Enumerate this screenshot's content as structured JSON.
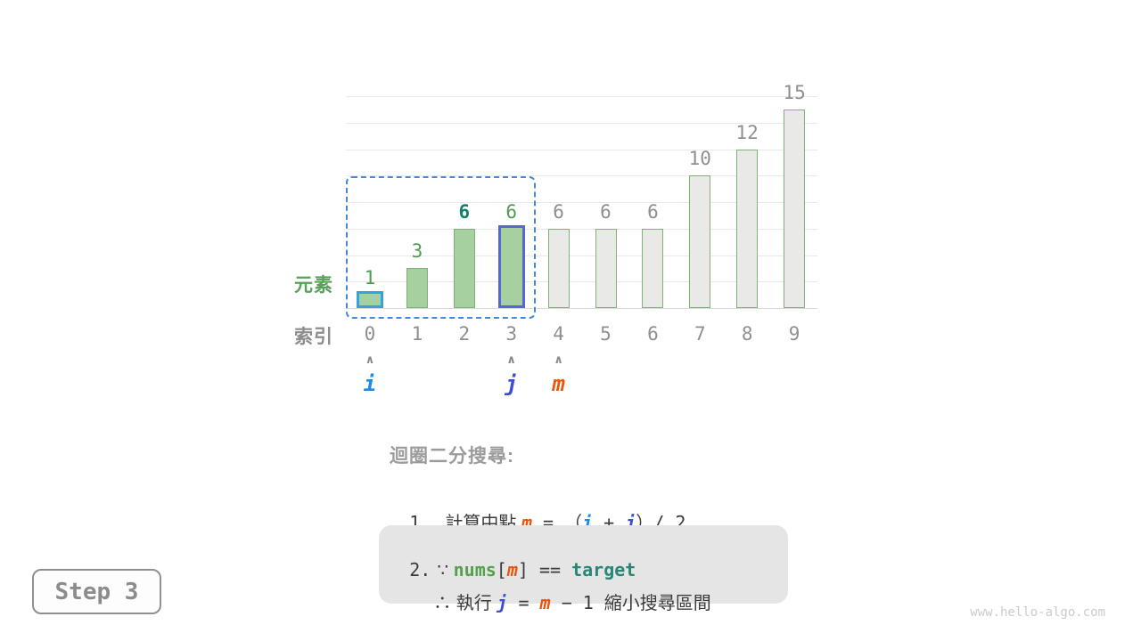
{
  "step_badge": "Step 3",
  "watermark": "www.hello-algo.com",
  "chart_data": {
    "type": "bar",
    "title": "",
    "xlabel": "索引",
    "ylabel": "元素",
    "categories": [
      "0",
      "1",
      "2",
      "3",
      "4",
      "5",
      "6",
      "7",
      "8",
      "9"
    ],
    "values": [
      1,
      3,
      6,
      6,
      6,
      6,
      6,
      10,
      12,
      15
    ],
    "ylim": [
      0,
      16
    ],
    "gridline_values": [
      2,
      4,
      6,
      8,
      10,
      12,
      14,
      16
    ],
    "grid": true,
    "legend": "none",
    "row_label_elements": "元素",
    "row_label_index": "索引",
    "bar_states": [
      "active",
      "active",
      "active",
      "active",
      "inactive",
      "inactive",
      "inactive",
      "inactive",
      "inactive",
      "inactive"
    ],
    "bar_highlights": {
      "0": "blue",
      "3": "indigo"
    },
    "value_label_styles": [
      "green",
      "green",
      "teal-bold",
      "green",
      "gray",
      "gray",
      "gray",
      "gray",
      "gray",
      "gray"
    ],
    "search_window": {
      "from_index": 0,
      "to_index": 3
    }
  },
  "pointers": [
    {
      "label": "i",
      "index": 0,
      "style": "i"
    },
    {
      "label": "j",
      "index": 3,
      "style": "j"
    },
    {
      "label": "m",
      "index": 4,
      "style": "m"
    }
  ],
  "explanation": {
    "heading": "迴圈二分搜尋:",
    "line1": {
      "number": "1.",
      "segments": [
        {
          "t": "計算中點 ",
          "c": "text"
        },
        {
          "t": "m",
          "c": "m"
        },
        {
          "t": " = ",
          "c": "mono"
        },
        {
          "t": "（",
          "c": "text"
        },
        {
          "t": "i",
          "c": "i"
        },
        {
          "t": " + ",
          "c": "mono"
        },
        {
          "t": "j",
          "c": "j"
        },
        {
          "t": "）",
          "c": "text"
        },
        {
          "t": "/ 2",
          "c": "mono"
        }
      ]
    },
    "line2a": {
      "number": "2.",
      "segments": [
        {
          "t": "∵ ",
          "c": "text"
        },
        {
          "t": "nums",
          "c": "nums"
        },
        {
          "t": "[",
          "c": "mono"
        },
        {
          "t": "m",
          "c": "m"
        },
        {
          "t": "]",
          "c": "mono"
        },
        {
          "t": " == ",
          "c": "mono"
        },
        {
          "t": "target",
          "c": "target"
        }
      ]
    },
    "line2b": {
      "segments": [
        {
          "t": "∴ 執行 ",
          "c": "text"
        },
        {
          "t": "j",
          "c": "j"
        },
        {
          "t": " = ",
          "c": "mono"
        },
        {
          "t": "m",
          "c": "m"
        },
        {
          "t": " − 1 ",
          "c": "mono"
        },
        {
          "t": "縮小搜尋區間",
          "c": "text"
        }
      ]
    }
  },
  "colors": {
    "bar_active_fill": "#a6d0a0",
    "bar_inactive_fill": "#e9eae7",
    "bar_border_green": "#7db377",
    "highlight_blue": "#35a3e3",
    "highlight_indigo": "#5767d8",
    "dashed_window_blue": "#4489d8",
    "pointer_i": "#1b8ceb",
    "pointer_j": "#3a4ed8",
    "pointer_m": "#e8560e",
    "label_green": "#519b51",
    "label_teal": "#17806c",
    "label_gray": "#8f8f8f",
    "label_elem_green": "#57a257",
    "nums_green": "#55a04e",
    "target_teal": "#2a8577",
    "text_dark": "#3b3b3b",
    "heading_gray": "#9b9b9b",
    "box_bg": "#e5e5e5",
    "grid": "#e9e9e9",
    "baseline": "#d8d8d8"
  }
}
